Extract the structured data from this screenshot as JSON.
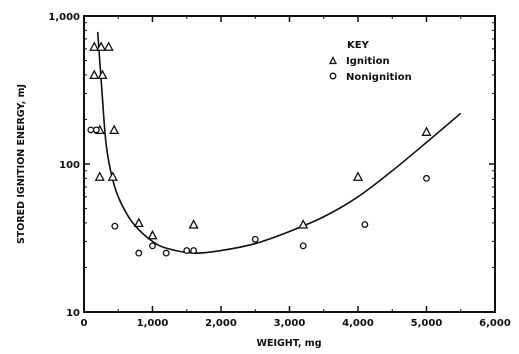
{
  "chart_data": {
    "type": "scatter",
    "xlabel": "WEIGHT, mg",
    "ylabel": "STORED IGNITION ENERGY, mJ",
    "xlim": [
      0,
      6000
    ],
    "ylim": [
      10,
      1000
    ],
    "y_scale": "log",
    "x_ticks": [
      0,
      1000,
      2000,
      3000,
      4000,
      5000,
      6000
    ],
    "x_tick_labels": [
      "0",
      "1,000",
      "2,000",
      "3,000",
      "4,000",
      "5,000",
      "6,000"
    ],
    "y_ticks": [
      10,
      100,
      1000
    ],
    "y_tick_labels": [
      "10",
      "100",
      "1,000"
    ],
    "grid": false,
    "legend": {
      "title": "KEY",
      "position": "top-right",
      "entries": [
        "Ignition",
        "Nonignition"
      ]
    },
    "series": [
      {
        "name": "Ignition",
        "marker": "triangle",
        "points": [
          {
            "x": 150,
            "y": 620
          },
          {
            "x": 250,
            "y": 620
          },
          {
            "x": 360,
            "y": 620
          },
          {
            "x": 150,
            "y": 400
          },
          {
            "x": 270,
            "y": 400
          },
          {
            "x": 230,
            "y": 170
          },
          {
            "x": 440,
            "y": 170
          },
          {
            "x": 230,
            "y": 82
          },
          {
            "x": 420,
            "y": 82
          },
          {
            "x": 800,
            "y": 40
          },
          {
            "x": 1000,
            "y": 33
          },
          {
            "x": 1600,
            "y": 39
          },
          {
            "x": 3200,
            "y": 39
          },
          {
            "x": 4000,
            "y": 82
          },
          {
            "x": 5000,
            "y": 165
          }
        ]
      },
      {
        "name": "Nonignition",
        "marker": "circle",
        "points": [
          {
            "x": 100,
            "y": 170
          },
          {
            "x": 180,
            "y": 170
          },
          {
            "x": 450,
            "y": 38
          },
          {
            "x": 800,
            "y": 25
          },
          {
            "x": 1000,
            "y": 28
          },
          {
            "x": 1200,
            "y": 25
          },
          {
            "x": 1500,
            "y": 26
          },
          {
            "x": 1600,
            "y": 26
          },
          {
            "x": 2500,
            "y": 31
          },
          {
            "x": 3200,
            "y": 28
          },
          {
            "x": 4100,
            "y": 39
          },
          {
            "x": 5000,
            "y": 80
          }
        ]
      }
    ],
    "fit_curve": [
      {
        "x": 200,
        "y": 780
      },
      {
        "x": 260,
        "y": 320
      },
      {
        "x": 320,
        "y": 140
      },
      {
        "x": 400,
        "y": 85
      },
      {
        "x": 500,
        "y": 60
      },
      {
        "x": 650,
        "y": 44
      },
      {
        "x": 800,
        "y": 36
      },
      {
        "x": 1000,
        "y": 30
      },
      {
        "x": 1200,
        "y": 27
      },
      {
        "x": 1600,
        "y": 25
      },
      {
        "x": 2000,
        "y": 26
      },
      {
        "x": 2500,
        "y": 29
      },
      {
        "x": 3000,
        "y": 35
      },
      {
        "x": 3500,
        "y": 44
      },
      {
        "x": 4000,
        "y": 60
      },
      {
        "x": 4500,
        "y": 90
      },
      {
        "x": 5000,
        "y": 140
      },
      {
        "x": 5500,
        "y": 220
      }
    ]
  }
}
